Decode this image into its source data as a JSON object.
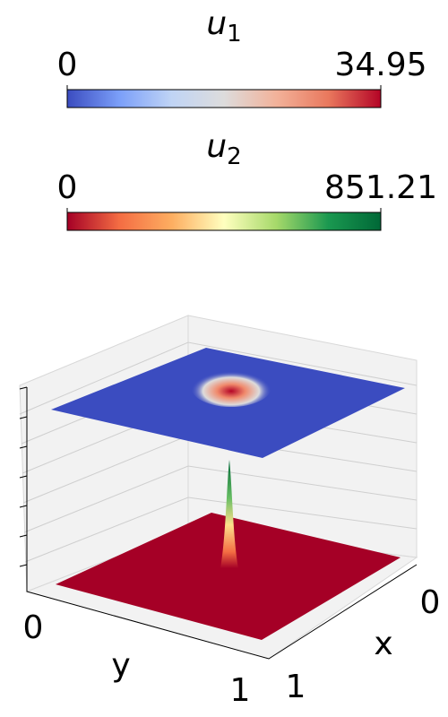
{
  "chart_data": {
    "type": "surface3d",
    "colorbars": [
      {
        "label": {
          "symbol": "u",
          "subscript": "1"
        },
        "colormap": "coolwarm",
        "lim": [
          0,
          34.95
        ],
        "ticks": [
          0,
          34.95
        ]
      },
      {
        "label": {
          "symbol": "u",
          "subscript": "2"
        },
        "colormap": "RdYlGn",
        "lim": [
          0,
          851.21
        ],
        "ticks": [
          0,
          851.21
        ]
      }
    ],
    "xlabel": "x",
    "ylabel": "y",
    "xticks": [
      0,
      1
    ],
    "yticks": [
      0,
      1
    ]
  }
}
